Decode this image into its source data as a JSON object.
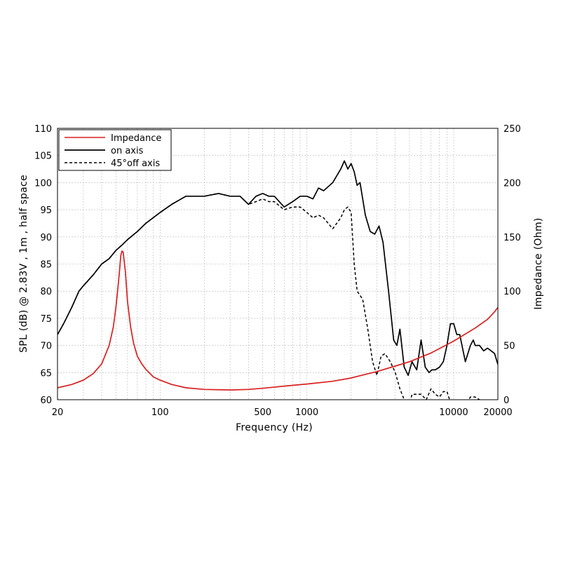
{
  "chart_data": {
    "type": "line",
    "xlabel": "Frequency (Hz)",
    "ylabel_left": "SPL (dB) @ 2.83V , 1m , half space",
    "ylabel_right": "Impedance (Ohm)",
    "x_scale": "log",
    "xlim": [
      20,
      20000
    ],
    "ylim_left": [
      60,
      110
    ],
    "ylim_right": [
      0,
      250
    ],
    "x_ticks": [
      20,
      100,
      500,
      1000,
      10000,
      20000
    ],
    "x_tick_labels": [
      "20",
      "100",
      "500",
      "1000",
      "10000",
      "20000"
    ],
    "y_ticks_left": [
      60,
      65,
      70,
      75,
      80,
      85,
      90,
      95,
      100,
      105,
      110
    ],
    "y_tick_labels_left": [
      "60",
      "65",
      "70",
      "75",
      "80",
      "85",
      "90",
      "95",
      "100",
      "105",
      "110"
    ],
    "y_ticks_right": [
      0,
      50,
      100,
      150,
      200,
      250
    ],
    "y_tick_labels_right": [
      "0",
      "50",
      "100",
      "150",
      "200",
      "250"
    ],
    "grid": true,
    "legend_position": "top-left",
    "colors": {
      "impedance": "#d92020",
      "on_axis": "#000000",
      "off_axis": "#000000"
    },
    "series": [
      {
        "name": "Impedance",
        "axis": "right",
        "style": "solid",
        "color": "#d92020",
        "x": [
          20,
          25,
          30,
          35,
          40,
          45,
          48,
          50,
          52,
          53,
          54,
          55,
          56,
          58,
          60,
          63,
          66,
          70,
          75,
          80,
          90,
          100,
          120,
          150,
          200,
          300,
          400,
          500,
          700,
          1000,
          1500,
          2000,
          3000,
          4000,
          5000,
          7000,
          10000,
          14000,
          17000,
          19000,
          20000
        ],
        "y": [
          11,
          14,
          18,
          24,
          33,
          50,
          67,
          85,
          108,
          120,
          133,
          137,
          136,
          118,
          90,
          67,
          52,
          40,
          33,
          28,
          21,
          18,
          14,
          11,
          9.5,
          9,
          9.5,
          10.5,
          12.5,
          14.5,
          17,
          20,
          26,
          31,
          35,
          43,
          54,
          66,
          74,
          81,
          85
        ]
      },
      {
        "name": "on axis",
        "axis": "left",
        "style": "solid",
        "color": "#000000",
        "x": [
          20,
          22,
          25,
          28,
          30,
          35,
          40,
          45,
          50,
          55,
          60,
          70,
          80,
          100,
          120,
          150,
          170,
          200,
          250,
          300,
          350,
          400,
          450,
          500,
          550,
          600,
          700,
          800,
          900,
          1000,
          1100,
          1200,
          1300,
          1500,
          1700,
          1800,
          1900,
          2000,
          2100,
          2200,
          2300,
          2500,
          2700,
          2900,
          3100,
          3300,
          3600,
          3900,
          4100,
          4300,
          4600,
          4900,
          5200,
          5600,
          6000,
          6400,
          6800,
          7100,
          7500,
          8000,
          8500,
          9000,
          9500,
          10000,
          10500,
          11000,
          12000,
          13000,
          13600,
          14000,
          15000,
          16000,
          17000,
          18000,
          19000,
          20000
        ],
        "y": [
          72,
          74,
          77,
          80,
          81,
          83,
          85,
          86,
          87.5,
          88.5,
          89.5,
          91,
          92.5,
          94.5,
          96,
          97.5,
          97.5,
          97.5,
          98,
          97.5,
          97.5,
          96,
          97.5,
          98,
          97.5,
          97.5,
          95.5,
          96.5,
          97.5,
          97.5,
          97,
          99,
          98.5,
          100,
          102.5,
          104,
          102.5,
          103.5,
          102,
          99.5,
          100,
          94,
          91,
          90.5,
          92,
          89,
          80,
          71,
          70,
          73,
          66,
          64.5,
          67,
          65.5,
          71,
          66,
          65,
          65.5,
          65.5,
          66,
          67,
          70,
          74,
          74,
          72,
          72,
          67,
          70,
          71,
          70,
          70,
          69,
          69.5,
          69,
          68.5,
          66.5
        ]
      },
      {
        "name": "45°off axis",
        "axis": "left",
        "style": "dashed",
        "color": "#000000",
        "x": [
          20,
          22,
          25,
          28,
          30,
          35,
          40,
          45,
          50,
          55,
          60,
          70,
          80,
          100,
          120,
          150,
          170,
          200,
          250,
          300,
          350,
          400,
          450,
          500,
          550,
          600,
          700,
          800,
          900,
          1000,
          1100,
          1200,
          1300,
          1500,
          1700,
          1800,
          1900,
          2000,
          2100,
          2200,
          2400,
          2600,
          2800,
          3000,
          3200,
          3400,
          3700,
          4000,
          4300,
          4600,
          5000,
          5200,
          5500,
          6000,
          6500,
          7000,
          7500,
          8000,
          8500,
          9000,
          9500,
          10000,
          11000,
          12000,
          13000,
          14000,
          15000,
          16000,
          17000,
          18000,
          19000,
          20000
        ],
        "y": [
          72,
          74,
          77,
          80,
          81,
          83,
          85,
          86,
          87.5,
          88.5,
          89.5,
          91,
          92.5,
          94.5,
          96,
          97.5,
          97.5,
          97.5,
          98,
          97.5,
          97.5,
          96,
          96.5,
          97,
          96.5,
          96.5,
          95,
          95.5,
          95.5,
          94.5,
          93.5,
          94,
          93.5,
          91.5,
          93.5,
          95,
          95.5,
          94.5,
          85,
          80,
          78.5,
          73,
          67,
          64.5,
          68,
          68.5,
          67,
          65,
          62,
          60,
          59,
          61,
          61,
          61,
          60,
          62,
          61,
          60.5,
          61.5,
          61.5,
          59.5,
          59.5,
          59,
          59,
          60.5,
          60.5,
          60,
          59.5,
          59,
          58.5,
          58.5,
          58.5
        ]
      }
    ]
  }
}
